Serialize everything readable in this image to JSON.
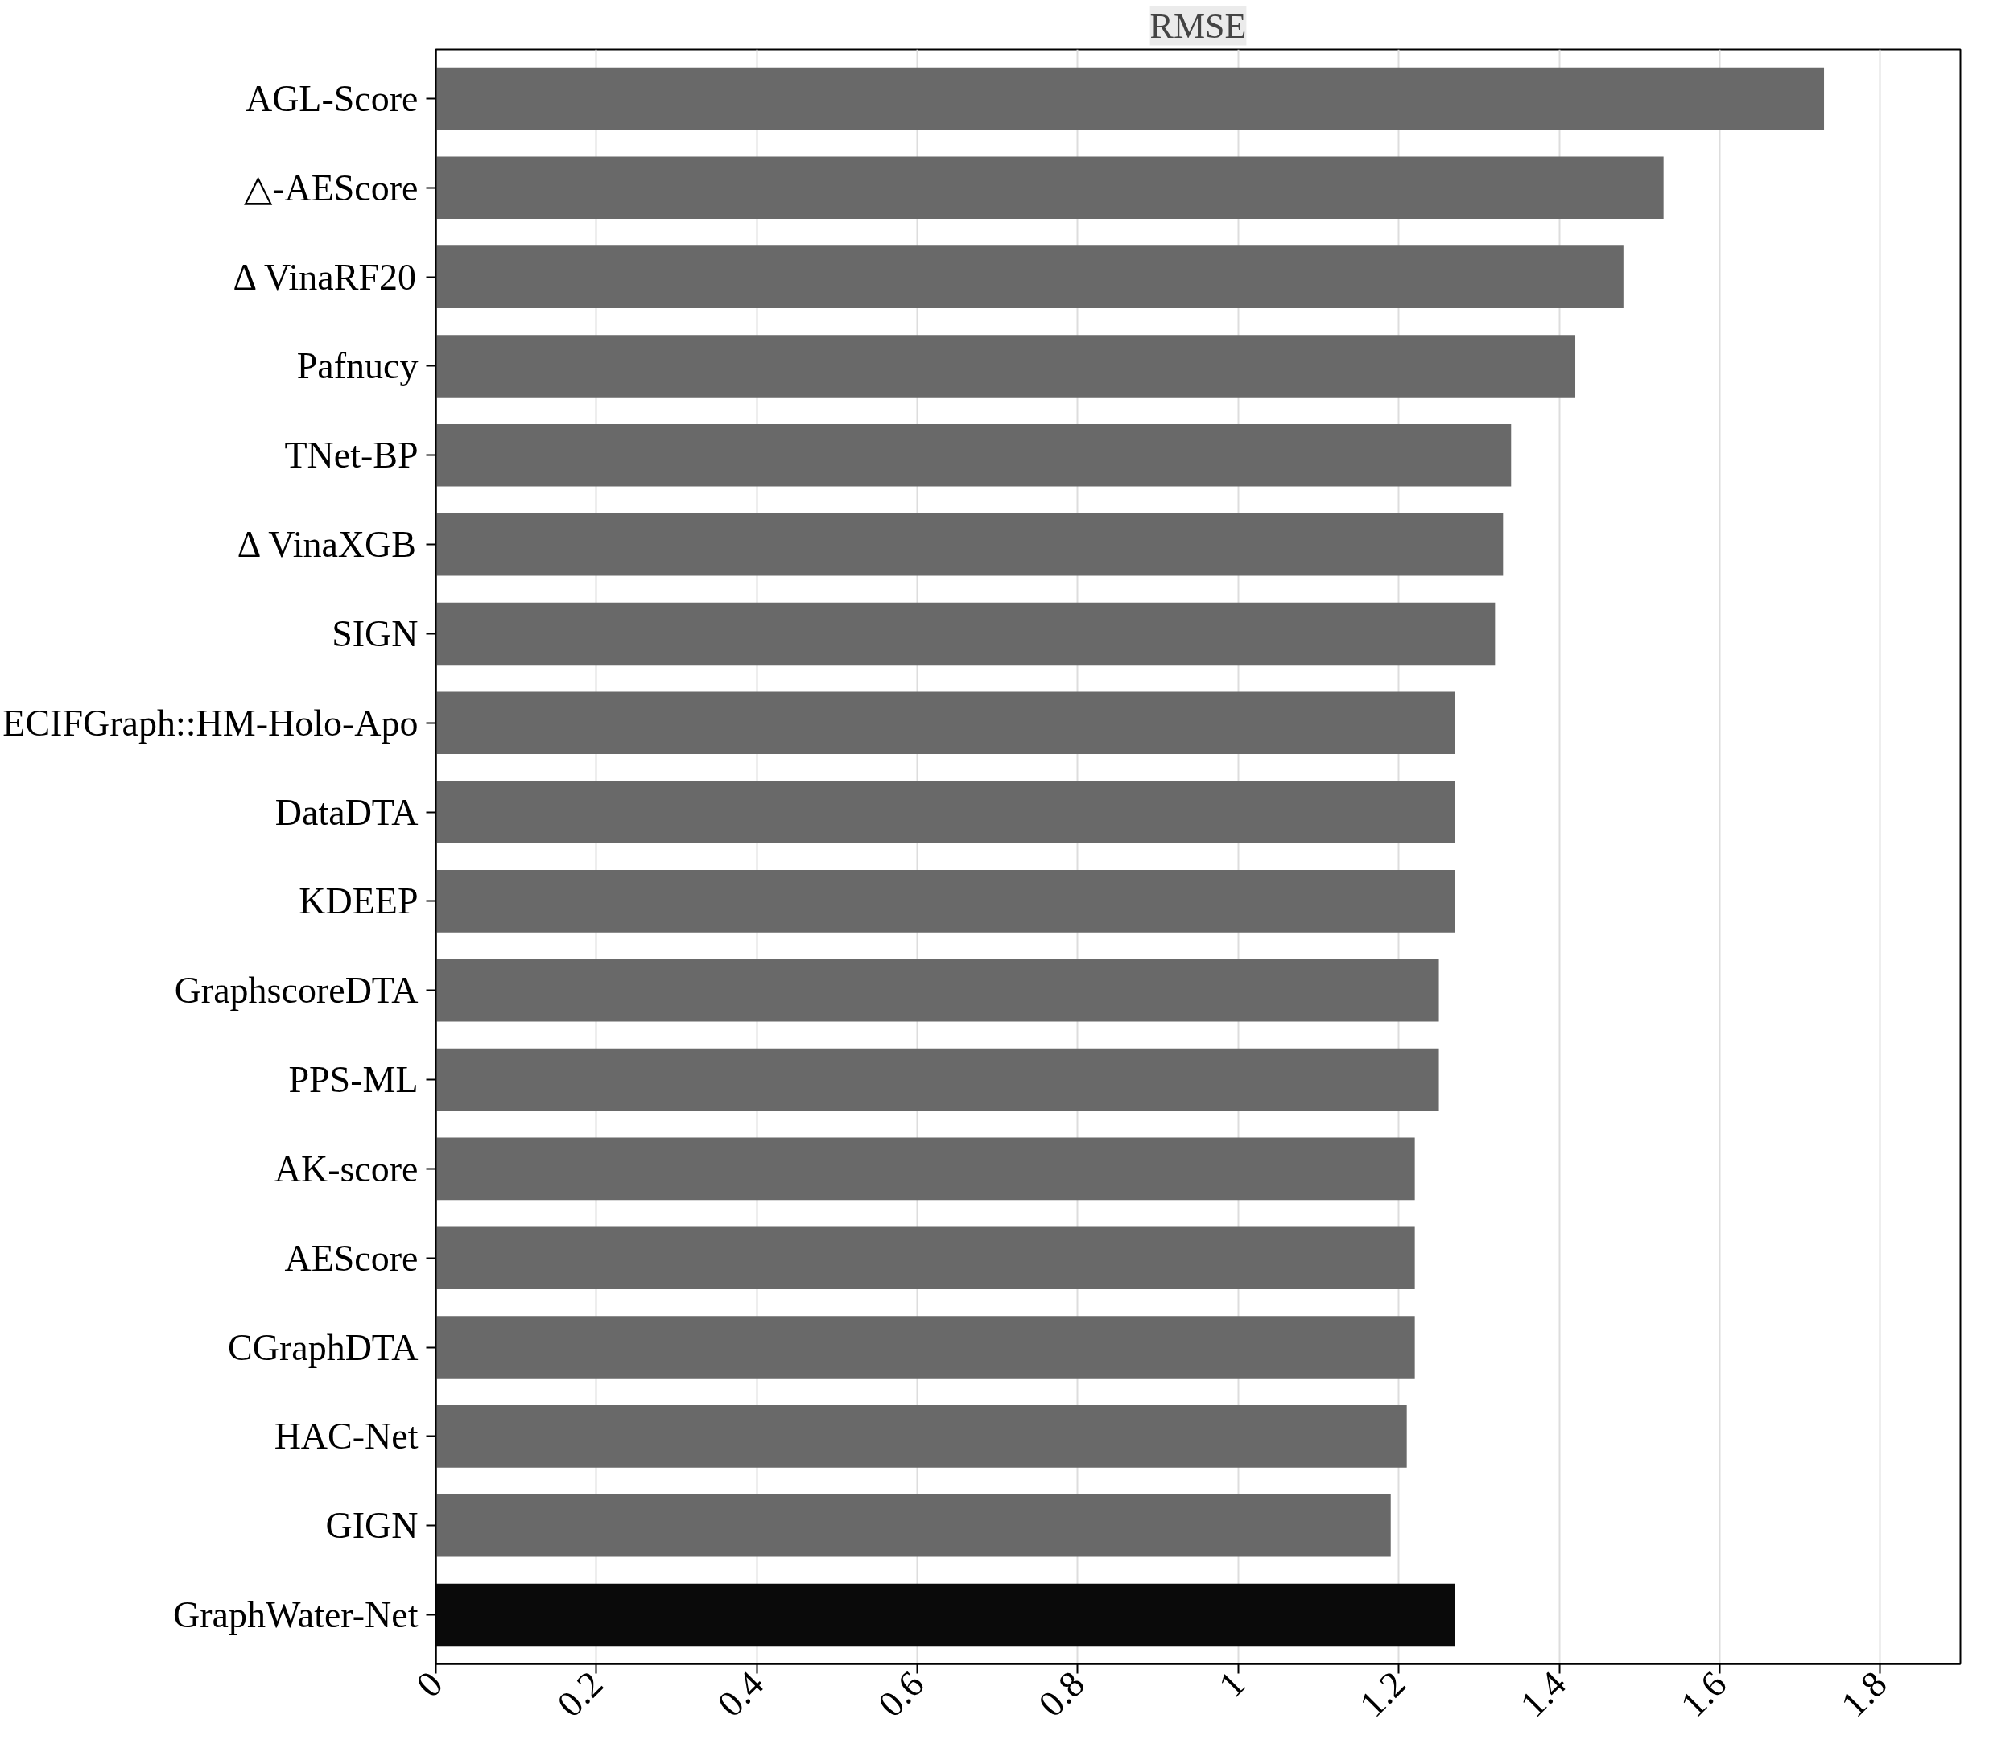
{
  "chart_data": {
    "type": "bar",
    "orientation": "horizontal",
    "title": "RMSE",
    "categories": [
      "AGL-Score",
      "△-AEScore",
      "Δ VinaRF20",
      "Pafnucy",
      "TNet-BP",
      "Δ VinaXGB",
      "SIGN",
      "ECIFGraph::HM-Holo-Apo",
      "DataDTA",
      "KDEEP",
      "GraphscoreDTA",
      "PPS-ML",
      "AK-score",
      "AEScore",
      "CGraphDTA",
      "HAC-Net",
      "GIGN",
      "GraphWater-Net"
    ],
    "values": [
      1.73,
      1.53,
      1.48,
      1.42,
      1.34,
      1.33,
      1.32,
      1.27,
      1.27,
      1.27,
      1.25,
      1.25,
      1.22,
      1.22,
      1.22,
      1.21,
      1.19,
      1.27
    ],
    "colors": [
      "#696969",
      "#696969",
      "#696969",
      "#696969",
      "#696969",
      "#696969",
      "#696969",
      "#696969",
      "#696969",
      "#696969",
      "#696969",
      "#696969",
      "#696969",
      "#696969",
      "#696969",
      "#696969",
      "#696969",
      "#0a0a0a"
    ],
    "xlim": [
      0,
      1.9
    ],
    "xticks": [
      0,
      0.2,
      0.4,
      0.6,
      0.8,
      1,
      1.2,
      1.4,
      1.6,
      1.8
    ],
    "grid": "x"
  }
}
